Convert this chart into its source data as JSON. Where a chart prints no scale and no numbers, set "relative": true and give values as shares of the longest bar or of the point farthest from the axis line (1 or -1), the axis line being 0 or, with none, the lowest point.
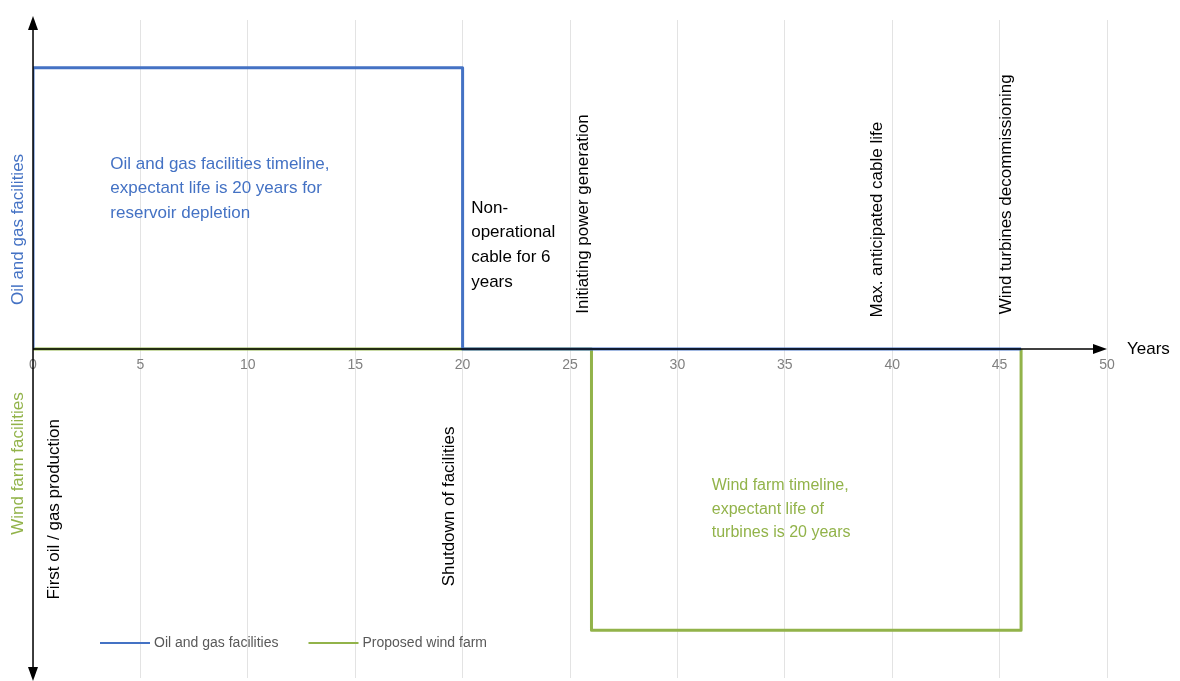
{
  "chart_data": {
    "type": "line",
    "relative": true,
    "xlabel": "Years",
    "ylabel": "Oil and gas facilities",
    "xlim": [
      0,
      50
    ],
    "xticks": [
      0,
      5,
      10,
      15,
      20,
      25,
      30,
      35,
      40,
      45,
      50
    ],
    "grid": "x",
    "legend": "bottom left",
    "marker": "none",
    "series": [
      {
        "name": "Oil and gas facilities",
        "color": "#4472c4",
        "x": [
          0,
          0,
          20,
          20,
          46
        ],
        "values": [
          0,
          1,
          1,
          0,
          0
        ]
      },
      {
        "name": "Proposed wind farm",
        "color": "#92b34a",
        "x": [
          0,
          26,
          26,
          46,
          46
        ],
        "values": [
          0,
          0,
          -1,
          -1,
          0
        ]
      }
    ],
    "annotations": [
      "Wind farm facilities",
      "First oil / gas production",
      "Shutdown of facilities",
      "Initiating power generation",
      "Max. anticipated cable life",
      "Wind turbines decommissioning",
      "Non-operational cable for 6 years",
      "Oil and gas facilities timeline, expectant life is 20 years for reservoir depletion",
      "Wind farm timeline, expectant life of turbines is 20 years"
    ]
  }
}
